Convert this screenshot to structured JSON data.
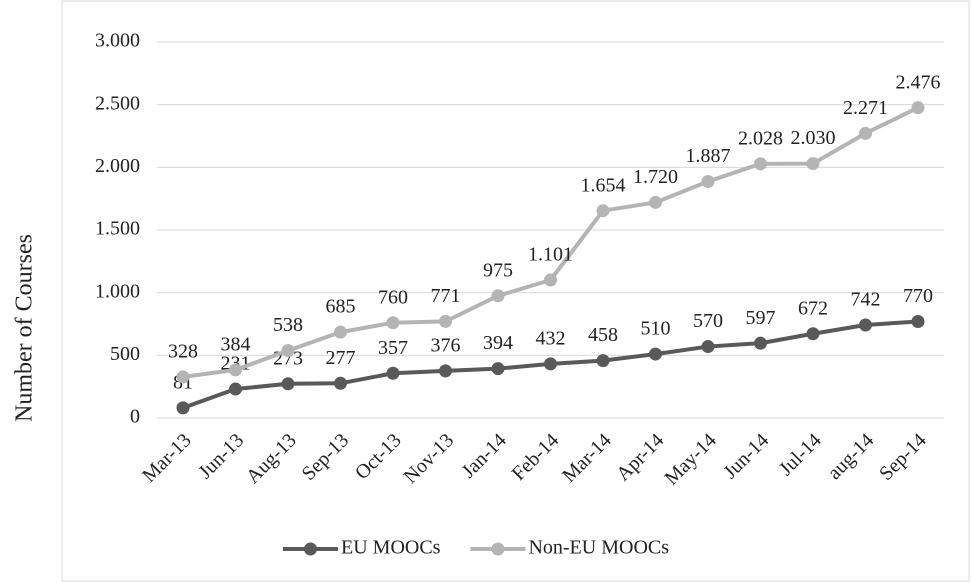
{
  "chart_data": {
    "type": "line",
    "y_axis_label": "Number of Courses",
    "categories": [
      "Mar-13",
      "Jun-13",
      "Aug-13",
      "Sep-13",
      "Oct-13",
      "Nov-13",
      "Jan-14",
      "Feb-14",
      "Mar-14",
      "Apr-14",
      "May-14",
      "Jun-14",
      "Jul-14",
      "aug-14",
      "Sep-14"
    ],
    "series": [
      {
        "name": "EU MOOCs",
        "color": "#595959",
        "values": [
          81,
          231,
          273,
          277,
          357,
          376,
          394,
          432,
          458,
          510,
          570,
          597,
          672,
          742,
          770
        ]
      },
      {
        "name": "Non-EU MOOCs",
        "color": "#b4b4b4",
        "values": [
          328,
          384,
          538,
          685,
          760,
          771,
          975,
          1101,
          1654,
          1720,
          1887,
          2028,
          2030,
          2271,
          2476
        ],
        "value_labels": [
          "328",
          "384",
          "538",
          "685",
          "760",
          "771",
          "975",
          "1.101",
          "1.654",
          "1.720",
          "1.887",
          "2.028",
          "2.030",
          "2.271",
          "2.476"
        ]
      }
    ],
    "ylim": [
      0,
      3000
    ],
    "yticks": [
      0,
      500,
      {
        "value": 1000,
        "label": "1.000"
      },
      {
        "value": 1500,
        "label": "1.500"
      },
      {
        "value": 2000,
        "label": "2.000"
      },
      {
        "value": 2500,
        "label": "2.500"
      },
      {
        "value": 3000,
        "label": "3.000"
      }
    ],
    "grid": true,
    "legend": "bottom"
  }
}
